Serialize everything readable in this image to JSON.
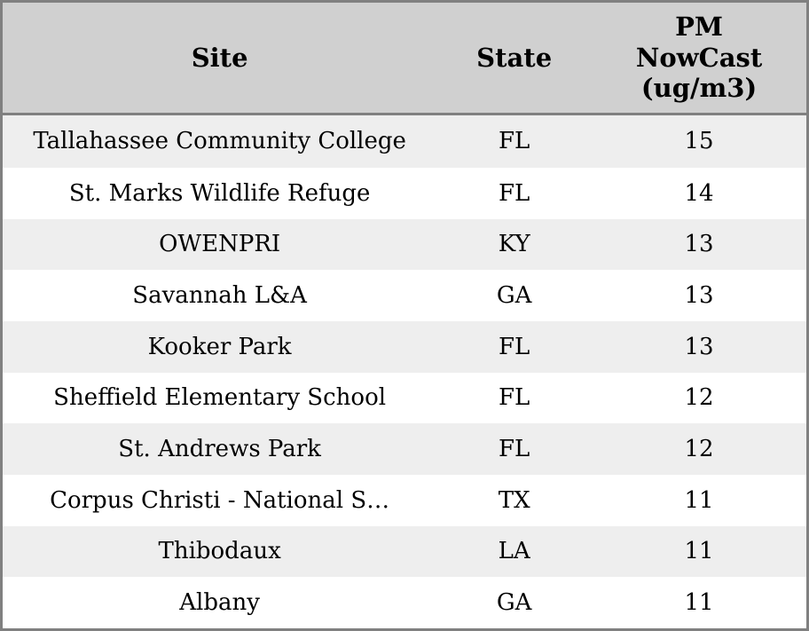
{
  "colors": {
    "border": "#808080",
    "header_bg": "#d0d0d0",
    "row_odd_bg": "#eeeeee",
    "row_even_bg": "#ffffff",
    "text": "#000000"
  },
  "chart_data": {
    "type": "table",
    "columns": [
      "Site",
      "State",
      "PM NowCast (ug/m3)"
    ],
    "rows": [
      [
        "Tallahassee Community College",
        "FL",
        15
      ],
      [
        "St. Marks Wildlife Refuge",
        "FL",
        14
      ],
      [
        "OWENPRI",
        "KY",
        13
      ],
      [
        "Savannah L&A",
        "GA",
        13
      ],
      [
        "Kooker Park",
        "FL",
        13
      ],
      [
        "Sheffield Elementary School",
        "FL",
        12
      ],
      [
        "St. Andrews Park",
        "FL",
        12
      ],
      [
        "Corpus Christi - National S…",
        "TX",
        11
      ],
      [
        "Thibodaux",
        "LA",
        11
      ],
      [
        "Albany",
        "GA",
        11
      ]
    ],
    "layout": {
      "striped": true,
      "header_position": "top",
      "cell_alignment": "center"
    }
  }
}
